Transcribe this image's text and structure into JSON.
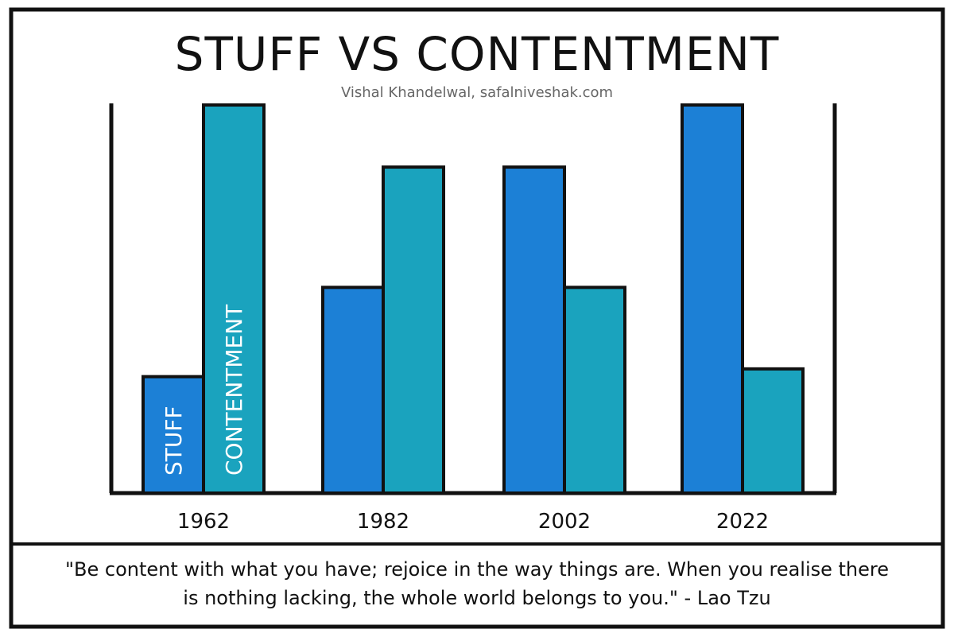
{
  "chart_data": {
    "type": "bar",
    "title": "STUFF VS CONTENTMENT",
    "subtitle": "Vishal Khandelwal, safalniveshak.com",
    "categories": [
      "1962",
      "1982",
      "2002",
      "2022"
    ],
    "series": [
      {
        "name": "STUFF",
        "values": [
          30,
          53,
          84,
          100
        ],
        "color": "#1c80d6"
      },
      {
        "name": "CONTENTMENT",
        "values": [
          100,
          84,
          53,
          32
        ],
        "color": "#1aa3be"
      }
    ],
    "ylim": [
      0,
      100
    ],
    "xlabel": "",
    "ylabel": "",
    "grid": false,
    "legend": "labels inside first pair of bars"
  },
  "quote": {
    "line1": "\"Be content with what you have; rejoice in the way things are. When you realise there",
    "line2": "is nothing lacking, the whole world belongs to you.\" - Lao Tzu"
  }
}
